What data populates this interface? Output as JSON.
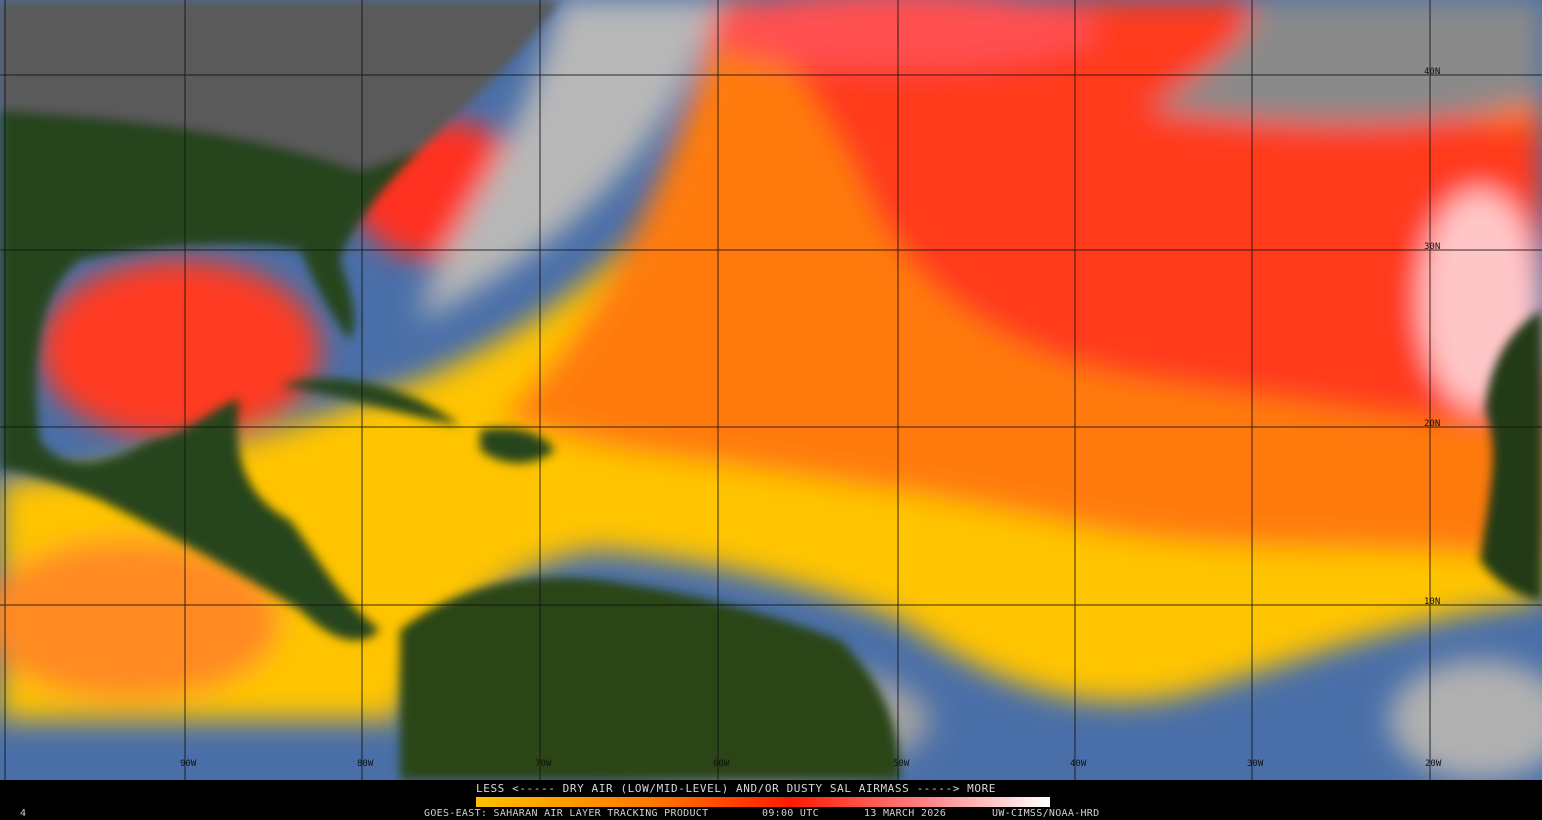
{
  "map": {
    "product": "GOES-EAST: SAHARAN AIR LAYER TRACKING PRODUCT",
    "time": "09:00 UTC",
    "date": "13 MARCH 2026",
    "credit": "UW-CIMSS/NOAA-HRD",
    "frame_number": "4",
    "legend": {
      "label": "LESS <----- DRY AIR (LOW/MID-LEVEL) AND/OR DUSTY SAL AIRMASS -----> MORE",
      "colors": [
        "#ffc000",
        "#ff8000",
        "#ff2000",
        "#ff8080",
        "#ffffff"
      ]
    },
    "latitude_labels": [
      "40N",
      "30N",
      "20N",
      "10N"
    ],
    "longitude_labels": [
      "90W",
      "80W",
      "70W",
      "60W",
      "50W",
      "40W",
      "30W",
      "20W"
    ],
    "colors": {
      "ocean_moist": "#4a6fa8",
      "land": "#1f3a12",
      "cloud": "#b0b0b0",
      "sal_low": "#ffd000",
      "sal_mid": "#ff6a00",
      "sal_high": "#ff2020",
      "sal_max": "#ffc0c8"
    }
  }
}
